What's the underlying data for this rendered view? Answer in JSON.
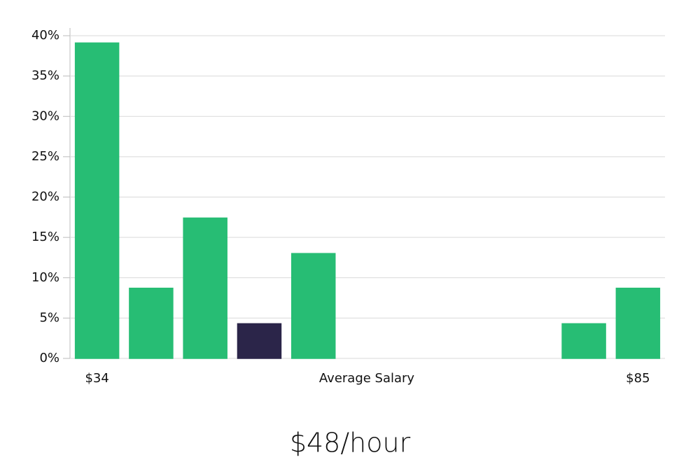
{
  "chart_data": {
    "type": "bar",
    "categories": [
      "$34",
      null,
      null,
      null,
      null,
      null,
      null,
      null,
      null,
      null,
      "$85"
    ],
    "values": [
      39.1,
      8.7,
      17.4,
      4.3,
      13.0,
      0,
      0,
      0,
      0,
      4.3,
      8.7
    ],
    "colors": [
      "#27bd74",
      "#27bd74",
      "#27bd74",
      "#2b2549",
      "#27bd74",
      "#27bd74",
      "#27bd74",
      "#27bd74",
      "#27bd74",
      "#27bd74",
      "#27bd74"
    ],
    "xlabel": "Average Salary",
    "headline": "$48/hour",
    "ylim": [
      0,
      40
    ],
    "yticks": [
      {
        "value": 0,
        "label": "0%"
      },
      {
        "value": 5,
        "label": "5%"
      },
      {
        "value": 10,
        "label": "10%"
      },
      {
        "value": 15,
        "label": "15%"
      },
      {
        "value": 20,
        "label": "20%"
      },
      {
        "value": 25,
        "label": "25%"
      },
      {
        "value": 30,
        "label": "30%"
      },
      {
        "value": 35,
        "label": "35%"
      },
      {
        "value": 40,
        "label": "40%"
      }
    ],
    "grid": true
  }
}
